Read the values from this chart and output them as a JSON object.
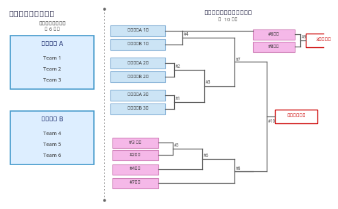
{
  "title": "野球　トーナメント",
  "left_section_title": "【予選ラウンド】",
  "left_section_subtitle": "全 6 試合",
  "group_a_title": "グループ A",
  "group_a_teams": [
    "Team 1",
    "Team 2",
    "Team 3"
  ],
  "group_b_title": "グループ B",
  "group_b_teams": [
    "Team 4",
    "Team 5",
    "Team 6"
  ],
  "knockout_title": "【ノックアウトステージ】",
  "knockout_subtitle": "全  10 試合",
  "winner_box_color": "#cce4f5",
  "winner_box_edge": "#8ab4d8",
  "loser_box_color": "#f5b8e8",
  "loser_box_edge": "#d080b8",
  "group_box_color": "#ddeeff",
  "group_box_edge": "#4499cc",
  "final_box_color": "#ffffff",
  "final_box_edge": "#cc0000",
  "final_text_color": "#cc0000",
  "line_color": "#555555",
  "text_color": "#333333",
  "bg_color": "#ffffff",
  "winner_slots": [
    "グループA 1位",
    "グループB 1位",
    "グループA 2位",
    "グループB 2位",
    "グループA 3位",
    "グループB 3位"
  ],
  "loser_slots_top": [
    "#6敗者",
    "#8敗者"
  ],
  "loser_slots_bottom": [
    "#3 敗者",
    "#2敗者",
    "#4敗者",
    "#7敗者"
  ],
  "third_place_label": "3位決定戦",
  "final_label": "決勝／表彰式"
}
